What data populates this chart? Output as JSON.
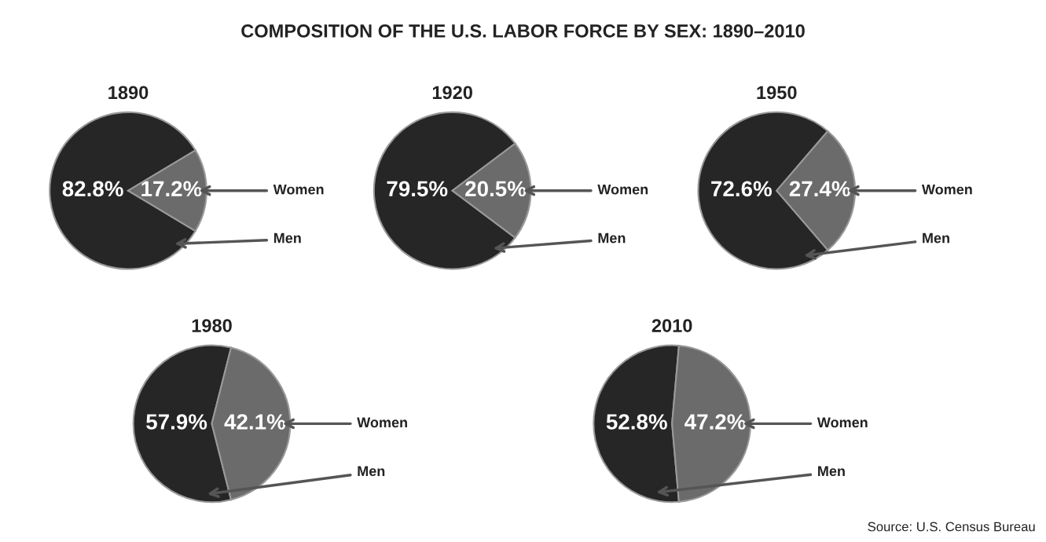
{
  "chart_data": [
    {
      "type": "other",
      "title": "COMPOSITION OF THE U.S. LABOR FORCE BY SEX: 1890–2010"
    },
    {
      "type": "pie",
      "title": "1890",
      "categories": [
        "Men",
        "Women"
      ],
      "values": [
        82.8,
        17.2
      ],
      "colors": [
        "#262626",
        "#6b6b6b"
      ],
      "value_labels": [
        "82.8%",
        "17.2%"
      ]
    },
    {
      "type": "pie",
      "title": "1920",
      "categories": [
        "Men",
        "Women"
      ],
      "values": [
        79.5,
        20.5
      ],
      "colors": [
        "#262626",
        "#6b6b6b"
      ],
      "value_labels": [
        "79.5%",
        "20.5%"
      ]
    },
    {
      "type": "pie",
      "title": "1950",
      "categories": [
        "Men",
        "Women"
      ],
      "values": [
        72.6,
        27.4
      ],
      "colors": [
        "#262626",
        "#6b6b6b"
      ],
      "value_labels": [
        "72.6%",
        "27.4%"
      ]
    },
    {
      "type": "pie",
      "title": "1980",
      "categories": [
        "Men",
        "Women"
      ],
      "values": [
        57.9,
        42.1
      ],
      "colors": [
        "#262626",
        "#6b6b6b"
      ],
      "value_labels": [
        "57.9%",
        "42.1%"
      ]
    },
    {
      "type": "pie",
      "title": "2010",
      "categories": [
        "Men",
        "Women"
      ],
      "values": [
        52.8,
        47.2
      ],
      "colors": [
        "#262626",
        "#6b6b6b"
      ],
      "value_labels": [
        "52.8%",
        "47.2%"
      ],
      "annotations": [
        "Source: U.S. Census Bureau"
      ]
    }
  ]
}
